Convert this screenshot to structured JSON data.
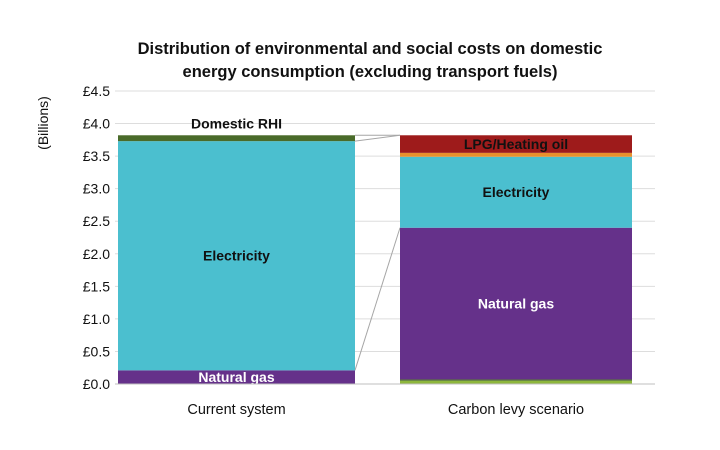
{
  "chart_data": {
    "type": "bar",
    "stacked": true,
    "title_lines": [
      "Distribution of environmental and social costs on domestic",
      "energy consumption (excluding transport fuels)"
    ],
    "ylabel": "(Billions)",
    "ylim": [
      0,
      4.5
    ],
    "yticks": [
      "£0.0",
      "£0.5",
      "£1.0",
      "£1.5",
      "£2.0",
      "£2.5",
      "£3.0",
      "£3.5",
      "£4.0",
      "£4.5"
    ],
    "grid": true,
    "categories": [
      "Current system",
      "Carbon levy scenario"
    ],
    "bars": [
      {
        "category": "Current system",
        "segments": [
          {
            "label": "Natural gas",
            "value": 0.21,
            "color": "#65318a",
            "label_color": "#ffffff"
          },
          {
            "label": "Electricity",
            "value": 3.52,
            "color": "#4bbfcf",
            "label_color": "#111111"
          },
          {
            "label": "Domestic RHI",
            "value": 0.09,
            "color": "#4a6b2a",
            "label_color": "#111111",
            "label_above": true
          }
        ]
      },
      {
        "category": "Carbon levy scenario",
        "segments": [
          {
            "label": "",
            "value": 0.05,
            "color": "#8db63c",
            "label_color": "#111111"
          },
          {
            "label": "",
            "value": 0.02,
            "color": "#4a6b2a",
            "label_color": "#111111"
          },
          {
            "label": "Natural gas",
            "value": 2.33,
            "color": "#65318a",
            "label_color": "#ffffff"
          },
          {
            "label": "Electricity",
            "value": 1.09,
            "color": "#4bbfcf",
            "label_color": "#111111"
          },
          {
            "label": "",
            "value": 0.06,
            "color": "#e8902c",
            "label_color": "#111111"
          },
          {
            "label": "LPG/Heating oil",
            "value": 0.27,
            "color": "#9e1b1b",
            "label_color": "#111111"
          }
        ]
      }
    ]
  }
}
